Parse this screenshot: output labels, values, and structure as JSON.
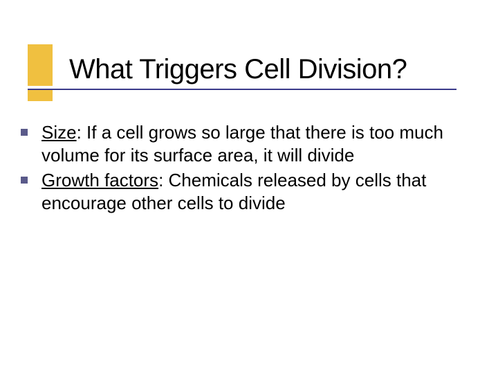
{
  "slide": {
    "title": "What Triggers Cell Division?",
    "title_fontsize": 40,
    "title_color": "#000000",
    "accent_color": "#f0c040",
    "rule_color": "#3a3a8a",
    "bullet_color": "#5a5a8a",
    "background_color": "#ffffff",
    "body_fontsize": 26,
    "bullets": [
      {
        "term": "Size",
        "rest": ": If a cell grows so large that there is too much volume for its surface area, it will divide"
      },
      {
        "term": "Growth factors",
        "rest": ": Chemicals released by  cells that encourage other cells to divide"
      }
    ]
  }
}
